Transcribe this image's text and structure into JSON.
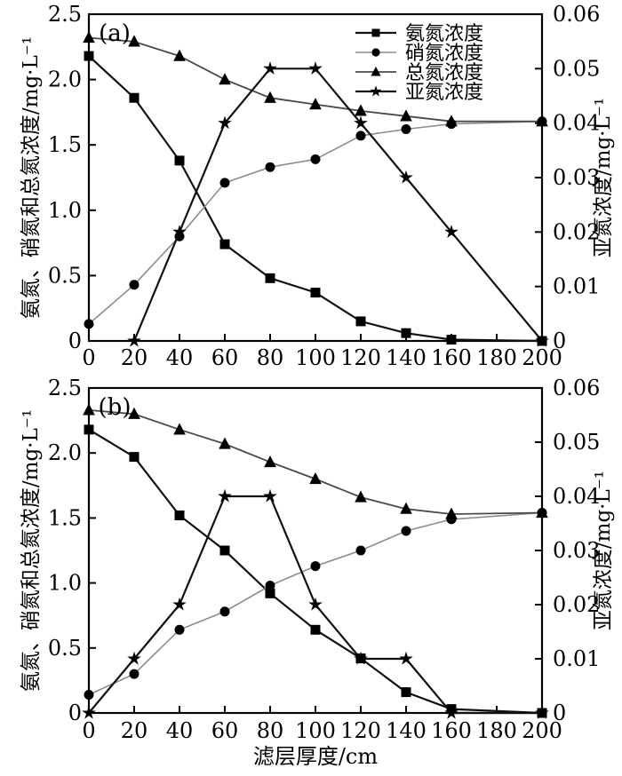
{
  "figure": {
    "x_axis_title": "滤层厚度/cm",
    "y_axis_title_left": "氨氮、硝氮和总氮浓度/mg·L⁻¹",
    "y_axis_title_right": "亚氮浓度/mg·L⁻¹",
    "colors": {
      "axis": "#000000",
      "marker": "#000000",
      "ammonia_line": "#111111",
      "nitrate_line": "#8c8c8c",
      "total_line": "#4a4a4a",
      "nitrite_line": "#111111"
    }
  },
  "chart_data": [
    {
      "type": "line",
      "panel_label": "(a)",
      "xlabel": "滤层厚度/cm",
      "ylabel_left": "氨氮、硝氮和总氮浓度/mg·L⁻¹",
      "ylabel_right": "亚氮浓度/mg·L⁻¹",
      "xlim": [
        0,
        200
      ],
      "ylim_left": [
        0,
        2.5
      ],
      "ylim_right": [
        0,
        0.06
      ],
      "grid": false,
      "legend_position": "top-right-inside",
      "xticks": [
        [
          0,
          "0"
        ],
        [
          20,
          "20"
        ],
        [
          40,
          "40"
        ],
        [
          60,
          "60"
        ],
        [
          80,
          "80"
        ],
        [
          100,
          "100"
        ],
        [
          120,
          "120"
        ],
        [
          140,
          "140"
        ],
        [
          160,
          "160"
        ],
        [
          180,
          "180"
        ],
        [
          200,
          "200"
        ]
      ],
      "yticks_left": [
        [
          0,
          "0"
        ],
        [
          0.5,
          "0.5"
        ],
        [
          1.0,
          "1.0"
        ],
        [
          1.5,
          "1.5"
        ],
        [
          2.0,
          "2.0"
        ],
        [
          2.5,
          "2.5"
        ]
      ],
      "yticks_right": [
        [
          0,
          "0"
        ],
        [
          0.01,
          "0.01"
        ],
        [
          0.02,
          "0.02"
        ],
        [
          0.03,
          "0.03"
        ],
        [
          0.04,
          "0.04"
        ],
        [
          0.05,
          "0.05"
        ],
        [
          0.06,
          "0.06"
        ]
      ],
      "x": [
        0,
        20,
        40,
        60,
        80,
        100,
        120,
        140,
        160,
        200
      ],
      "series": [
        {
          "key": "ammonia",
          "name": "氨氮浓度",
          "marker": "square",
          "axis": "left",
          "line_color": "#111111",
          "line_width": 2.2,
          "values": [
            2.18,
            1.86,
            1.38,
            0.74,
            0.48,
            0.37,
            0.15,
            0.06,
            0.01,
            0
          ]
        },
        {
          "key": "nitrate",
          "name": "硝氮浓度",
          "marker": "circle",
          "axis": "left",
          "line_color": "#8c8c8c",
          "line_width": 1.6,
          "values": [
            0.13,
            0.43,
            0.8,
            1.21,
            1.33,
            1.39,
            1.57,
            1.62,
            1.66,
            1.68
          ]
        },
        {
          "key": "total_nitrogen",
          "name": "总氮浓度",
          "marker": "triangle",
          "axis": "left",
          "line_color": "#4a4a4a",
          "line_width": 1.8,
          "values": [
            2.32,
            2.29,
            2.18,
            2.0,
            1.86,
            1.81,
            1.76,
            1.72,
            1.68,
            1.68
          ]
        },
        {
          "key": "nitrite",
          "name": "亚氮浓度",
          "marker": "star",
          "axis": "right",
          "line_color": "#111111",
          "line_width": 2.2,
          "x": [
            20,
            40,
            60,
            80,
            100,
            120,
            140,
            160,
            200
          ],
          "values": [
            0,
            0.02,
            0.04,
            0.05,
            0.05,
            0.04,
            0.03,
            0.02,
            0
          ]
        }
      ]
    },
    {
      "type": "line",
      "panel_label": "(b)",
      "xlabel": "滤层厚度/cm",
      "ylabel_left": "氨氮、硝氮和总氮浓度/mg·L⁻¹",
      "ylabel_right": "亚氮浓度/mg·L⁻¹",
      "xlim": [
        0,
        200
      ],
      "ylim_left": [
        0,
        2.5
      ],
      "ylim_right": [
        0,
        0.06
      ],
      "grid": false,
      "legend_position": "none",
      "xticks": [
        [
          0,
          "0"
        ],
        [
          20,
          "20"
        ],
        [
          40,
          "40"
        ],
        [
          60,
          "60"
        ],
        [
          80,
          "80"
        ],
        [
          100,
          "100"
        ],
        [
          120,
          "120"
        ],
        [
          140,
          "140"
        ],
        [
          160,
          "160"
        ],
        [
          180,
          "180"
        ],
        [
          200,
          "200"
        ]
      ],
      "yticks_left": [
        [
          0,
          "0"
        ],
        [
          0.5,
          "0.5"
        ],
        [
          1.0,
          "1.0"
        ],
        [
          1.5,
          "1.5"
        ],
        [
          2.0,
          "2.0"
        ],
        [
          2.5,
          "2.5"
        ]
      ],
      "yticks_right": [
        [
          0,
          "0"
        ],
        [
          0.01,
          "0.01"
        ],
        [
          0.02,
          "0.02"
        ],
        [
          0.03,
          "0.03"
        ],
        [
          0.04,
          "0.04"
        ],
        [
          0.05,
          "0.05"
        ],
        [
          0.06,
          "0.06"
        ]
      ],
      "x": [
        0,
        20,
        40,
        60,
        80,
        100,
        120,
        140,
        160,
        200
      ],
      "series": [
        {
          "key": "ammonia",
          "name": "氨氮浓度",
          "marker": "square",
          "axis": "left",
          "line_color": "#111111",
          "line_width": 2.2,
          "values": [
            2.18,
            1.97,
            1.52,
            1.25,
            0.92,
            0.64,
            0.42,
            0.16,
            0.03,
            0
          ]
        },
        {
          "key": "nitrate",
          "name": "硝氮浓度",
          "marker": "circle",
          "axis": "left",
          "line_color": "#8c8c8c",
          "line_width": 1.6,
          "values": [
            0.14,
            0.3,
            0.64,
            0.78,
            0.98,
            1.13,
            1.25,
            1.4,
            1.49,
            1.54
          ]
        },
        {
          "key": "total_nitrogen",
          "name": "总氮浓度",
          "marker": "triangle",
          "axis": "left",
          "line_color": "#4a4a4a",
          "line_width": 1.8,
          "values": [
            2.33,
            2.3,
            2.18,
            2.07,
            1.93,
            1.8,
            1.66,
            1.57,
            1.53,
            1.54
          ]
        },
        {
          "key": "nitrite",
          "name": "亚氮浓度",
          "marker": "star",
          "axis": "right",
          "line_color": "#111111",
          "line_width": 2.2,
          "values": [
            0,
            0.01,
            0.02,
            0.04,
            0.04,
            0.02,
            0.01,
            0.01,
            0,
            0
          ]
        }
      ]
    }
  ]
}
